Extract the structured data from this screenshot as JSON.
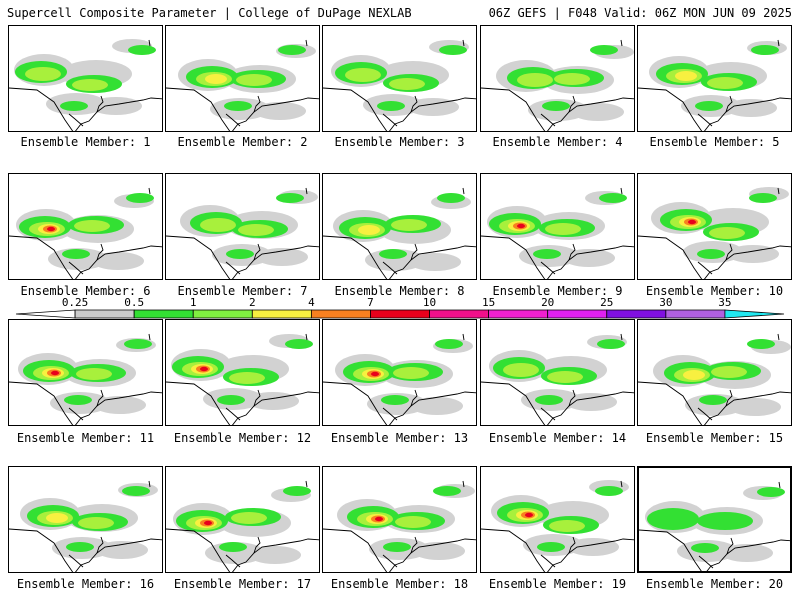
{
  "header": {
    "title_left": "Supercell Composite Parameter | College of DuPage NEXLAB",
    "title_right": "06Z GEFS | F048 Valid: 06Z MON JUN 09 2025"
  },
  "colors": {
    "light_gray": "#d2d2d2",
    "green": "#33e033",
    "light_green": "#a8f03c",
    "yellow": "#f8f040",
    "orange": "#f88020",
    "red": "#e8001c",
    "map_lines": "#000000"
  },
  "legend": {
    "labels": [
      "0.25",
      "0.5",
      "1",
      "2",
      "4",
      "7",
      "10",
      "15",
      "20",
      "25",
      "30",
      "35"
    ],
    "colors": [
      "#ffffff",
      "#cccccc",
      "#33e033",
      "#80f040",
      "#f8f040",
      "#f88020",
      "#e8001c",
      "#f0108a",
      "#f020d0",
      "#e020f0",
      "#8010e0",
      "#b060e0",
      "#20e8f0"
    ]
  },
  "members": [
    {
      "label": "Ensemble Member: 1",
      "intensity": 2,
      "highlighted": false
    },
    {
      "label": "Ensemble Member: 2",
      "intensity": 3,
      "highlighted": false
    },
    {
      "label": "Ensemble Member: 3",
      "intensity": 2,
      "highlighted": false
    },
    {
      "label": "Ensemble Member: 4",
      "intensity": 2,
      "highlighted": false
    },
    {
      "label": "Ensemble Member: 5",
      "intensity": 3,
      "highlighted": false
    },
    {
      "label": "Ensemble Member: 6",
      "intensity": 4,
      "highlighted": false
    },
    {
      "label": "Ensemble Member: 7",
      "intensity": 2,
      "highlighted": false
    },
    {
      "label": "Ensemble Member: 8",
      "intensity": 3,
      "highlighted": false
    },
    {
      "label": "Ensemble Member: 9",
      "intensity": 4,
      "highlighted": false
    },
    {
      "label": "Ensemble Member: 10",
      "intensity": 4,
      "highlighted": false
    },
    {
      "label": "Ensemble Member: 11",
      "intensity": 4,
      "highlighted": false
    },
    {
      "label": "Ensemble Member: 12",
      "intensity": 4,
      "highlighted": false
    },
    {
      "label": "Ensemble Member: 13",
      "intensity": 4,
      "highlighted": false
    },
    {
      "label": "Ensemble Member: 14",
      "intensity": 2,
      "highlighted": false
    },
    {
      "label": "Ensemble Member: 15",
      "intensity": 3,
      "highlighted": false
    },
    {
      "label": "Ensemble Member: 16",
      "intensity": 3,
      "highlighted": false
    },
    {
      "label": "Ensemble Member: 17",
      "intensity": 4,
      "highlighted": false
    },
    {
      "label": "Ensemble Member: 18",
      "intensity": 4,
      "highlighted": false
    },
    {
      "label": "Ensemble Member: 19",
      "intensity": 4,
      "highlighted": false
    },
    {
      "label": "Ensemble Member: 20",
      "intensity": 1,
      "highlighted": true
    }
  ]
}
